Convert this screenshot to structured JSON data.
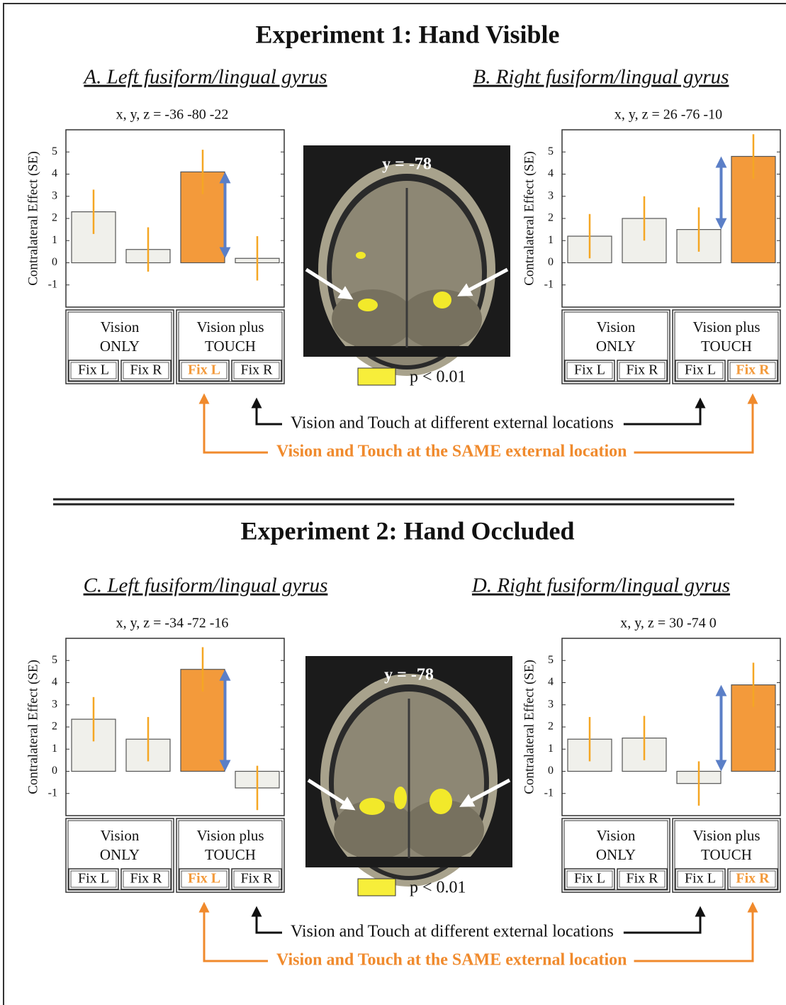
{
  "experiments": [
    {
      "title": "Experiment 1: Hand Visible",
      "brain_label": "y = -78",
      "legend_label": "p < 0.01",
      "different_note": "Vision and Touch at different external locations",
      "same_note": "Vision and Touch at the SAME external location"
    },
    {
      "title": "Experiment 2: Hand Occluded",
      "brain_label": "y = -78",
      "legend_label": "p < 0.01",
      "different_note": "Vision and Touch at different external locations",
      "same_note": "Vision and Touch at the SAME external location"
    }
  ],
  "chart_data": [
    {
      "type": "bar",
      "title": "A. Left fusiform/lingual gyrus",
      "subtitle": "x, y, z = -36 -80 -22",
      "ylabel": "Contralateral Effect (SE)",
      "groups": [
        [
          "Vision",
          "ONLY"
        ],
        [
          "Vision plus",
          "TOUCH"
        ]
      ],
      "categories": [
        "Fix L",
        "Fix R",
        "Fix L",
        "Fix R"
      ],
      "values": [
        2.3,
        0.6,
        4.1,
        0.2
      ],
      "errors": [
        1.0,
        1.0,
        1.0,
        1.0
      ],
      "highlight": 2,
      "color": "#f0f0eb",
      "highlight_color": "#f39a3b",
      "error_color": "#f5a623",
      "ylim": [
        -2,
        6
      ],
      "yticks": [
        -1,
        0,
        1,
        2,
        3,
        4,
        5
      ]
    },
    {
      "type": "bar",
      "title": "B. Right fusiform/lingual gyrus",
      "subtitle": "x, y, z = 26 -76 -10",
      "ylabel": "Contralateral Effect (SE)",
      "groups": [
        [
          "Vision",
          "ONLY"
        ],
        [
          "Vision plus",
          "TOUCH"
        ]
      ],
      "categories": [
        "Fix L",
        "Fix R",
        "Fix L",
        "Fix R"
      ],
      "values": [
        1.2,
        2.0,
        1.5,
        4.8
      ],
      "errors": [
        1.0,
        1.0,
        1.0,
        1.0
      ],
      "highlight": 3,
      "color": "#f0f0eb",
      "highlight_color": "#f39a3b",
      "error_color": "#f5a623",
      "ylim": [
        -2,
        6
      ],
      "yticks": [
        -1,
        0,
        1,
        2,
        3,
        4,
        5
      ]
    },
    {
      "type": "bar",
      "title": "C. Left fusiform/lingual gyrus",
      "subtitle": "x, y, z = -34 -72 -16",
      "ylabel": "Contralateral Effect (SE)",
      "groups": [
        [
          "Vision",
          "ONLY"
        ],
        [
          "Vision plus",
          "TOUCH"
        ]
      ],
      "categories": [
        "Fix L",
        "Fix R",
        "Fix L",
        "Fix R"
      ],
      "values": [
        2.35,
        1.45,
        4.6,
        -0.75
      ],
      "errors": [
        1.0,
        1.0,
        1.0,
        1.0
      ],
      "highlight": 2,
      "color": "#f0f0eb",
      "highlight_color": "#f39a3b",
      "error_color": "#f5a623",
      "ylim": [
        -2,
        6
      ],
      "yticks": [
        -1,
        0,
        1,
        2,
        3,
        4,
        5
      ]
    },
    {
      "type": "bar",
      "title": "D. Right fusiform/lingual gyrus",
      "subtitle": "x, y, z = 30 -74 0",
      "ylabel": "Contralateral Effect (SE)",
      "groups": [
        [
          "Vision",
          "ONLY"
        ],
        [
          "Vision plus",
          "TOUCH"
        ]
      ],
      "categories": [
        "Fix L",
        "Fix R",
        "Fix L",
        "Fix R"
      ],
      "values": [
        1.45,
        1.5,
        -0.55,
        3.9
      ],
      "errors": [
        1.0,
        1.0,
        1.0,
        1.0
      ],
      "highlight": 3,
      "color": "#f0f0eb",
      "highlight_color": "#f39a3b",
      "error_color": "#f5a623",
      "ylim": [
        -2,
        6
      ],
      "yticks": [
        -1,
        0,
        1,
        2,
        3,
        4,
        5
      ]
    }
  ]
}
